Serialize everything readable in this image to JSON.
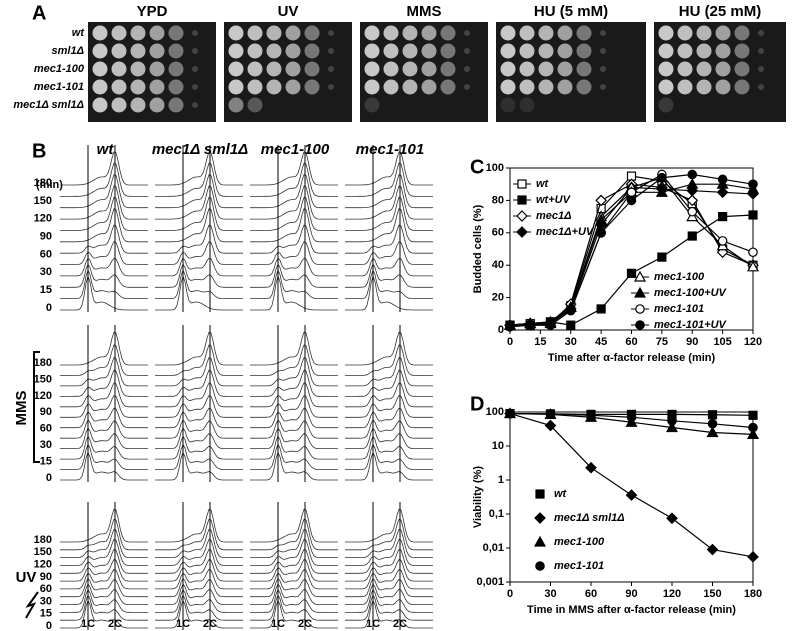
{
  "panel_a": {
    "letter": "A",
    "conditions": [
      "YPD",
      "UV",
      "MMS",
      "HU (5 mM)",
      "HU (25 mM)"
    ],
    "strains": [
      "wt",
      "sml1Δ",
      "mec1-100",
      "mec1-101",
      "mec1Δ sml1Δ"
    ]
  },
  "panel_b": {
    "letter": "B",
    "strains": [
      "wt",
      "mec1Δ sml1Δ",
      "mec1-100",
      "mec1-101"
    ],
    "time_unit": "(min)",
    "times": [
      180,
      150,
      120,
      90,
      60,
      30,
      15,
      0
    ],
    "treatments": [
      "MMS",
      "UV"
    ],
    "dna_content": [
      "1C",
      "2C"
    ]
  },
  "chart_data": [
    {
      "letter": "C",
      "type": "line",
      "xlabel": "Time after α-factor release (min)",
      "ylabel": "Budded cells (%)",
      "x": [
        0,
        10,
        20,
        30,
        45,
        60,
        75,
        90,
        105,
        120
      ],
      "xlim": [
        0,
        120
      ],
      "xticks": [
        0,
        15,
        30,
        45,
        60,
        75,
        90,
        105,
        120
      ],
      "ylim": [
        0,
        100
      ],
      "yticks": [
        0,
        20,
        40,
        60,
        80,
        100
      ],
      "series": [
        {
          "name": "wt",
          "color": "#000000",
          "marker": "square",
          "filled": false,
          "values": [
            3,
            4,
            5,
            15,
            75,
            95,
            92,
            78,
            50,
            40
          ]
        },
        {
          "name": "wt+UV",
          "color": "#000000",
          "marker": "square",
          "filled": true,
          "values": [
            3,
            3,
            5,
            3,
            13,
            35,
            45,
            58,
            70,
            71
          ]
        },
        {
          "name": "mec1Δ",
          "color": "#000000",
          "marker": "diamond",
          "filled": false,
          "values": [
            3,
            4,
            4,
            16,
            80,
            90,
            88,
            80,
            48,
            40
          ]
        },
        {
          "name": "mec1Δ+UV",
          "color": "#000000",
          "marker": "diamond",
          "filled": true,
          "values": [
            3,
            3,
            4,
            13,
            65,
            88,
            87,
            86,
            85,
            84
          ]
        },
        {
          "name": "mec1-100",
          "color": "#000000",
          "marker": "triangle",
          "filled": false,
          "values": [
            3,
            4,
            5,
            14,
            70,
            88,
            94,
            70,
            52,
            39
          ]
        },
        {
          "name": "mec1-100+UV",
          "color": "#000000",
          "marker": "triangle",
          "filled": true,
          "values": [
            3,
            4,
            4,
            14,
            68,
            85,
            85,
            90,
            90,
            87
          ]
        },
        {
          "name": "mec1-101",
          "color": "#000000",
          "marker": "circle",
          "filled": false,
          "values": [
            2,
            3,
            3,
            12,
            60,
            85,
            96,
            73,
            55,
            48
          ]
        },
        {
          "name": "mec1-101+UV",
          "color": "#000000",
          "marker": "circle",
          "filled": true,
          "values": [
            2,
            3,
            3,
            12,
            60,
            80,
            94,
            96,
            93,
            90
          ]
        }
      ]
    },
    {
      "letter": "D",
      "type": "line",
      "xlabel": "Time in MMS after α-factor release (min)",
      "ylabel": "Viability (%)",
      "x": [
        0,
        30,
        60,
        90,
        120,
        150,
        180
      ],
      "xlim": [
        0,
        180
      ],
      "xticks": [
        0,
        30,
        60,
        90,
        120,
        150,
        180
      ],
      "yscale": "log",
      "ylim": [
        0.001,
        100
      ],
      "yticks": [
        {
          "value": 0.001,
          "label": "0,001"
        },
        {
          "value": 0.01,
          "label": "0,01"
        },
        {
          "value": 0.1,
          "label": "0,1"
        },
        1,
        10,
        100
      ],
      "series": [
        {
          "name": "wt",
          "color": "#000000",
          "marker": "square",
          "filled": true,
          "values": [
            90,
            88,
            85,
            85,
            85,
            83,
            80
          ]
        },
        {
          "name": "mec1Δ sml1Δ",
          "color": "#000000",
          "marker": "diamond",
          "filled": true,
          "values": [
            90,
            40,
            2.3,
            0.36,
            0.075,
            0.009,
            0.0055
          ]
        },
        {
          "name": "mec1-100",
          "color": "#000000",
          "marker": "triangle",
          "filled": true,
          "values": [
            90,
            85,
            70,
            50,
            35,
            25,
            22
          ]
        },
        {
          "name": "mec1-101",
          "color": "#000000",
          "marker": "circle",
          "filled": true,
          "values": [
            90,
            88,
            80,
            70,
            55,
            45,
            35
          ]
        }
      ]
    }
  ]
}
